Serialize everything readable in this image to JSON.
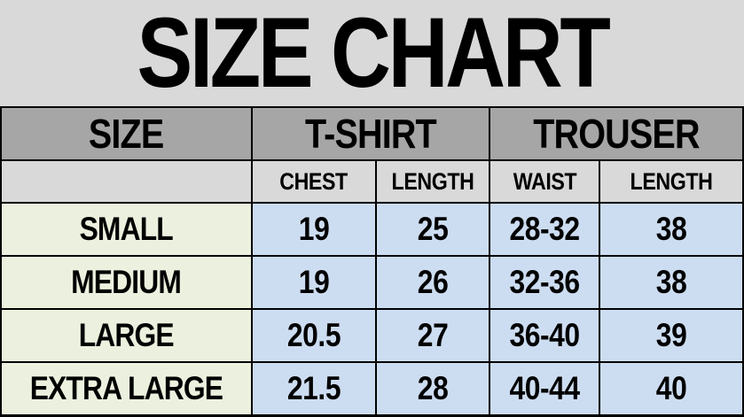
{
  "title": "SIZE CHART",
  "chart_data": {
    "type": "table",
    "title": "SIZE CHART",
    "column_groups": [
      {
        "label": "SIZE",
        "span": 1
      },
      {
        "label": "T-SHIRT",
        "span": 2
      },
      {
        "label": "TROUSER",
        "span": 2
      }
    ],
    "subcolumns": [
      "CHEST",
      "LENGTH",
      "WAIST",
      "LENGTH"
    ],
    "rows": [
      [
        "SMALL",
        "19",
        "25",
        "28-32",
        "38"
      ],
      [
        "MEDIUM",
        "19",
        "26",
        "32-36",
        "38"
      ],
      [
        "LARGE",
        "20.5",
        "27",
        "36-40",
        "39"
      ],
      [
        "EXTRA LARGE",
        "21.5",
        "28",
        "40-44",
        "40"
      ]
    ]
  },
  "colors": {
    "title_bg": "#d9d9d9",
    "header_bg": "#a6a6a6",
    "subheader_bg": "#d9d9d9",
    "size_column_bg": "#ebf1de",
    "value_cell_bg": "#cdddf1",
    "border": "#000000",
    "text": "#000000"
  }
}
